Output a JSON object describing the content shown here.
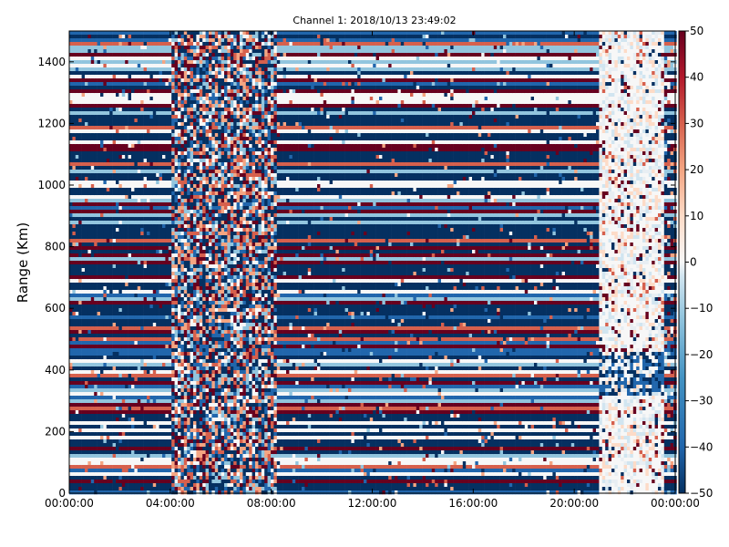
{
  "chart_data": {
    "type": "heatmap",
    "title": "Channel 1: 2018/10/13 23:49:02",
    "xlabel": "",
    "ylabel": "Range (Km)",
    "x_ticks": [
      "00:00:00",
      "04:00:00",
      "08:00:00",
      "12:00:00",
      "16:00:00",
      "20:00:00",
      "00:00:00"
    ],
    "xlim_hours": [
      0,
      24
    ],
    "y_ticks": [
      0,
      200,
      400,
      600,
      800,
      1000,
      1200,
      1400
    ],
    "ylim": [
      0,
      1500
    ],
    "colorbar": {
      "ticks": [
        -50,
        -40,
        -30,
        -20,
        -10,
        0,
        10,
        20,
        30,
        40,
        50
      ],
      "tick_labels": [
        "−50",
        "−40",
        "−30",
        "−20",
        "−10",
        "0",
        "10",
        "20",
        "30",
        "40",
        "50"
      ],
      "range": [
        -50,
        50
      ],
      "colormap": "RdBu_r"
    },
    "regions": [
      {
        "label": "striped noise",
        "hours": [
          0,
          4.1
        ],
        "pattern": "horizontal stripes"
      },
      {
        "label": "speckled band",
        "hours": [
          4.1,
          8.2
        ],
        "pattern": "random mixed"
      },
      {
        "label": "striped noise",
        "hours": [
          8.2,
          21
        ],
        "pattern": "horizontal stripes"
      },
      {
        "label": "weak echoes",
        "hours": [
          21,
          24
        ],
        "pattern": "near zero with blue patch near 400 Km"
      }
    ],
    "no_data_hours": [
      23.55,
      24
    ]
  },
  "colors": {
    "dark_red": "#67001f",
    "dark_blue": "#053061",
    "mid_blue": "#2166ac",
    "light_blue": "#92c5de",
    "white": "#f7f7f7",
    "light_red": "#f4a582",
    "red": "#d6604d"
  }
}
